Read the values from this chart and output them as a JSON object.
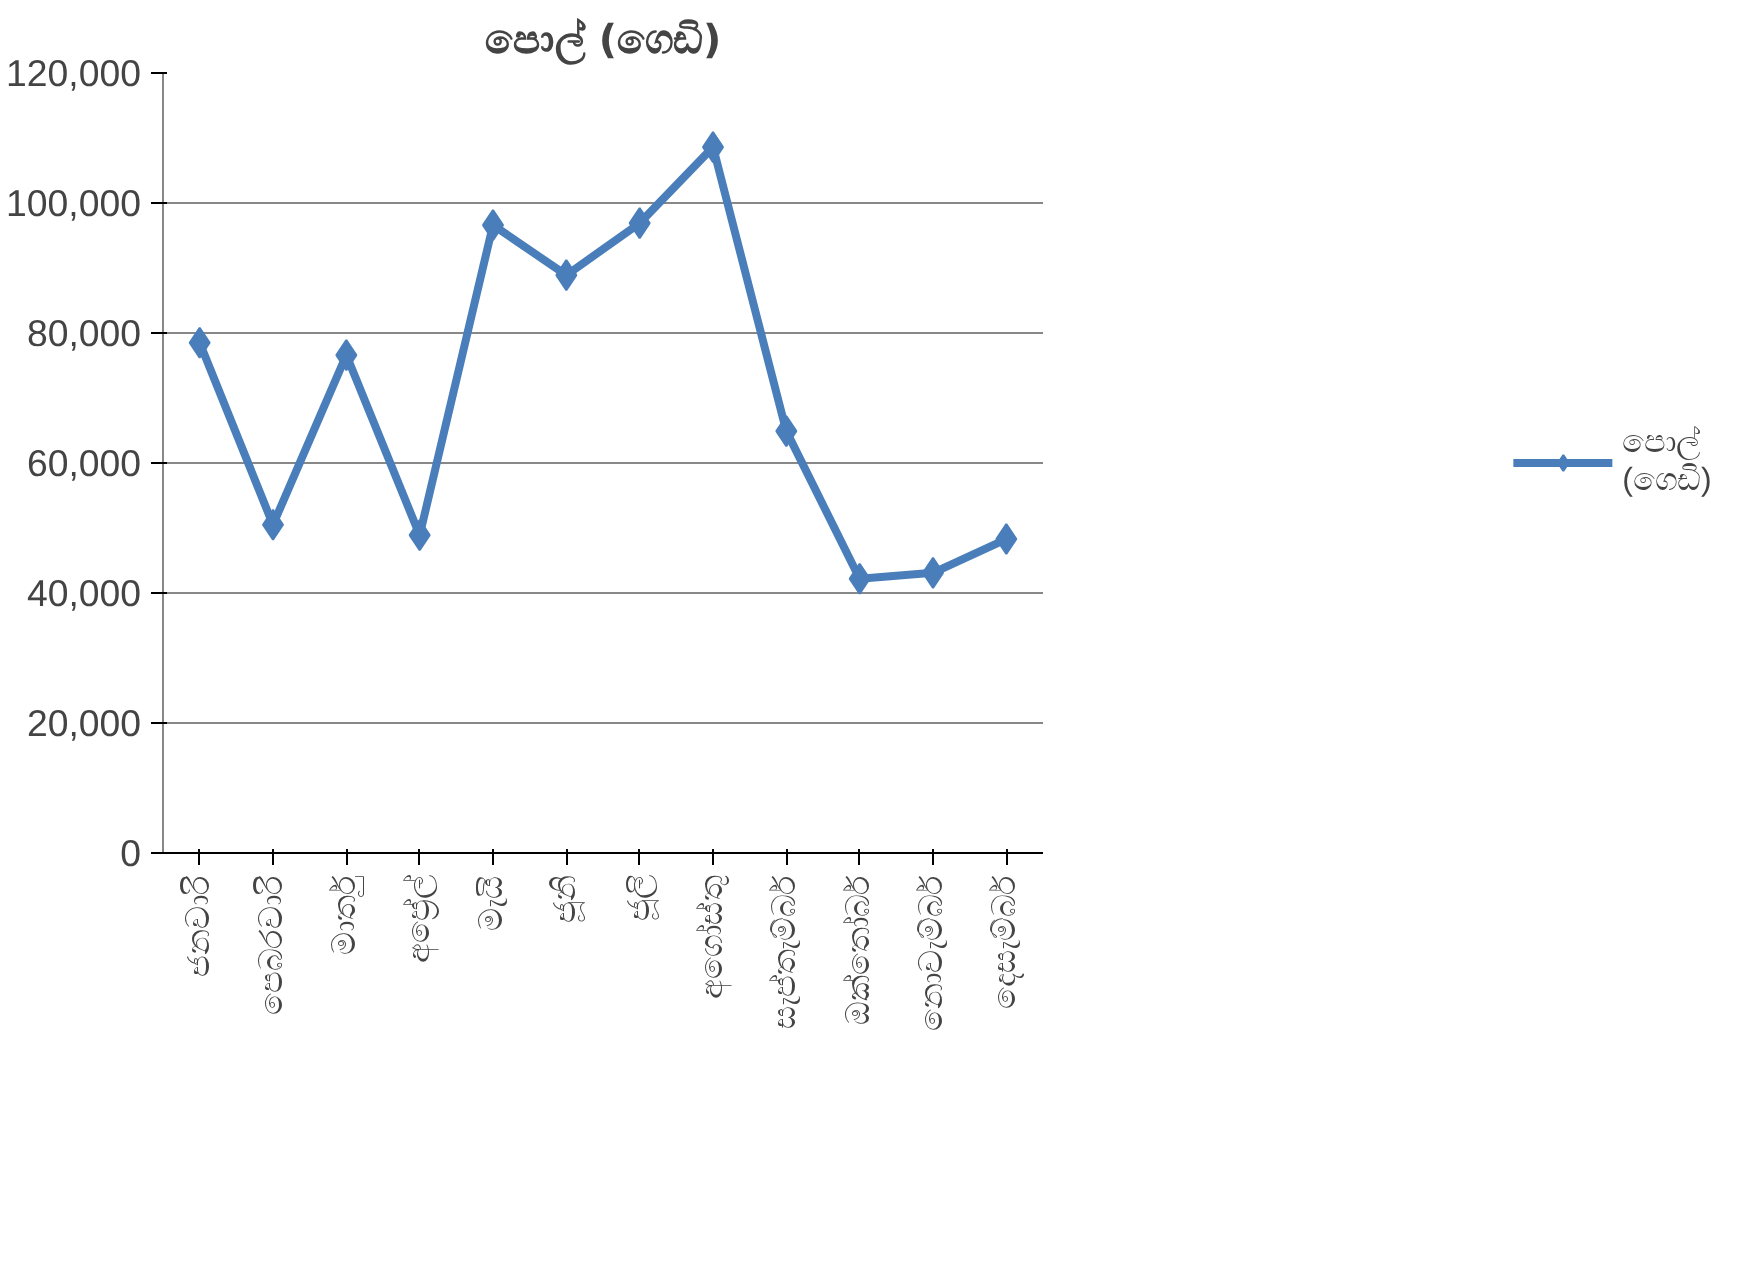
{
  "chart_data": {
    "type": "line",
    "title": "පොල් (ගෙඩි)",
    "categories": [
      "ජනවාරි",
      "පෙබරවාරි",
      "මාර්තු",
      "අප්‍රේල්",
      "මැයි",
      "ජූනි",
      "ජූලි",
      "අගෝස්තු",
      "සැප්තැම්බර්",
      "ඔක්තෝබර්",
      "නොවැම්බර්",
      "දෙසැම්බර්"
    ],
    "series": [
      {
        "name": "පොල් (ගෙඩි)",
        "color": "#4a7ebb",
        "values": [
          78500,
          50500,
          76600,
          48900,
          96600,
          88900,
          96900,
          108600,
          64900,
          42200,
          43100,
          48300
        ]
      }
    ],
    "ylim": [
      0,
      120000
    ],
    "yticks": [
      {
        "value": 0,
        "label": "0"
      },
      {
        "value": 20000,
        "label": "20,000"
      },
      {
        "value": 40000,
        "label": "40,000"
      },
      {
        "value": 60000,
        "label": "60,000"
      },
      {
        "value": 80000,
        "label": "80,000"
      },
      {
        "value": 100000,
        "label": "100,000"
      },
      {
        "value": 120000,
        "label": "120,000"
      }
    ],
    "grid": "y",
    "legend": "right",
    "marker": "diamond",
    "line_style": "solid"
  }
}
